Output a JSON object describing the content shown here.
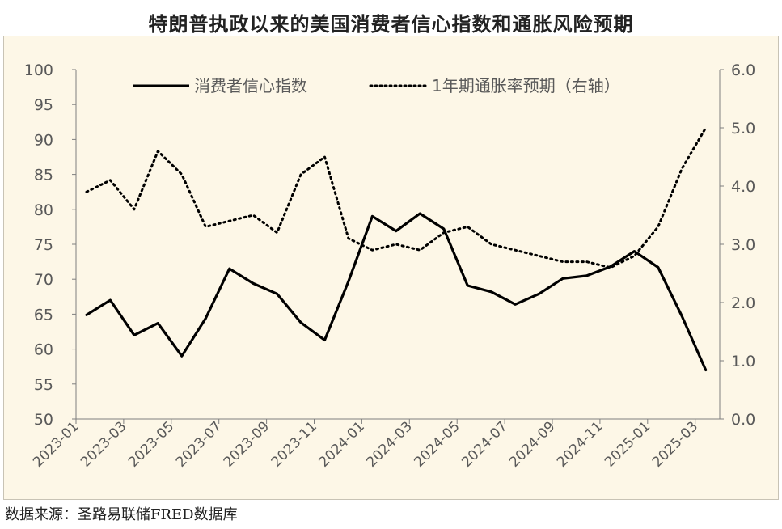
{
  "title": "特朗普执政以来的美国消费者信心指数和通胀风险预期",
  "source": "数据来源：圣路易联储FRED数据库",
  "colors": {
    "background": "#fdf7e7",
    "line": "#000000",
    "axis": "#7f7f7f",
    "text": "#595959"
  },
  "chart_data": {
    "type": "line",
    "x": [
      "2023-01",
      "2023-02",
      "2023-03",
      "2023-04",
      "2023-05",
      "2023-06",
      "2023-07",
      "2023-08",
      "2023-09",
      "2023-10",
      "2023-11",
      "2023-12",
      "2024-01",
      "2024-02",
      "2024-03",
      "2024-04",
      "2024-05",
      "2024-06",
      "2024-07",
      "2024-08",
      "2024-09",
      "2024-10",
      "2024-11",
      "2024-12",
      "2025-01",
      "2025-02",
      "2025-03"
    ],
    "x_tick_labels": [
      "2023-01",
      "2023-03",
      "2023-05",
      "2023-07",
      "2023-09",
      "2023-11",
      "2024-01",
      "2024-03",
      "2024-05",
      "2024-07",
      "2024-09",
      "2024-11",
      "2025-01",
      "2025-03"
    ],
    "series": [
      {
        "name": "消费者信心指数",
        "axis": "left",
        "style": "solid",
        "values": [
          64.9,
          67.0,
          62.0,
          63.7,
          59.0,
          64.4,
          71.5,
          69.4,
          67.9,
          63.8,
          61.3,
          69.7,
          79.0,
          76.9,
          79.4,
          77.2,
          69.1,
          68.2,
          66.4,
          67.9,
          70.1,
          70.5,
          71.8,
          74.0,
          71.7,
          64.7,
          57.0
        ]
      },
      {
        "name": "1年期通胀率预期（右轴）",
        "axis": "right",
        "style": "dotted",
        "values": [
          3.9,
          4.1,
          3.6,
          4.6,
          4.2,
          3.3,
          3.4,
          3.5,
          3.2,
          4.2,
          4.5,
          3.1,
          2.9,
          3.0,
          2.9,
          3.2,
          3.3,
          3.0,
          2.9,
          2.8,
          2.7,
          2.7,
          2.6,
          2.8,
          3.3,
          4.3,
          5.0
        ]
      }
    ],
    "y_left": {
      "min": 50,
      "max": 100,
      "step": 5,
      "ticks": [
        "50",
        "55",
        "60",
        "65",
        "70",
        "75",
        "80",
        "85",
        "90",
        "95",
        "100"
      ]
    },
    "y_right": {
      "min": 0,
      "max": 6,
      "step": 1,
      "ticks": [
        "0.0",
        "1.0",
        "2.0",
        "3.0",
        "4.0",
        "5.0",
        "6.0"
      ]
    },
    "grid": false,
    "legend_position": "top"
  }
}
